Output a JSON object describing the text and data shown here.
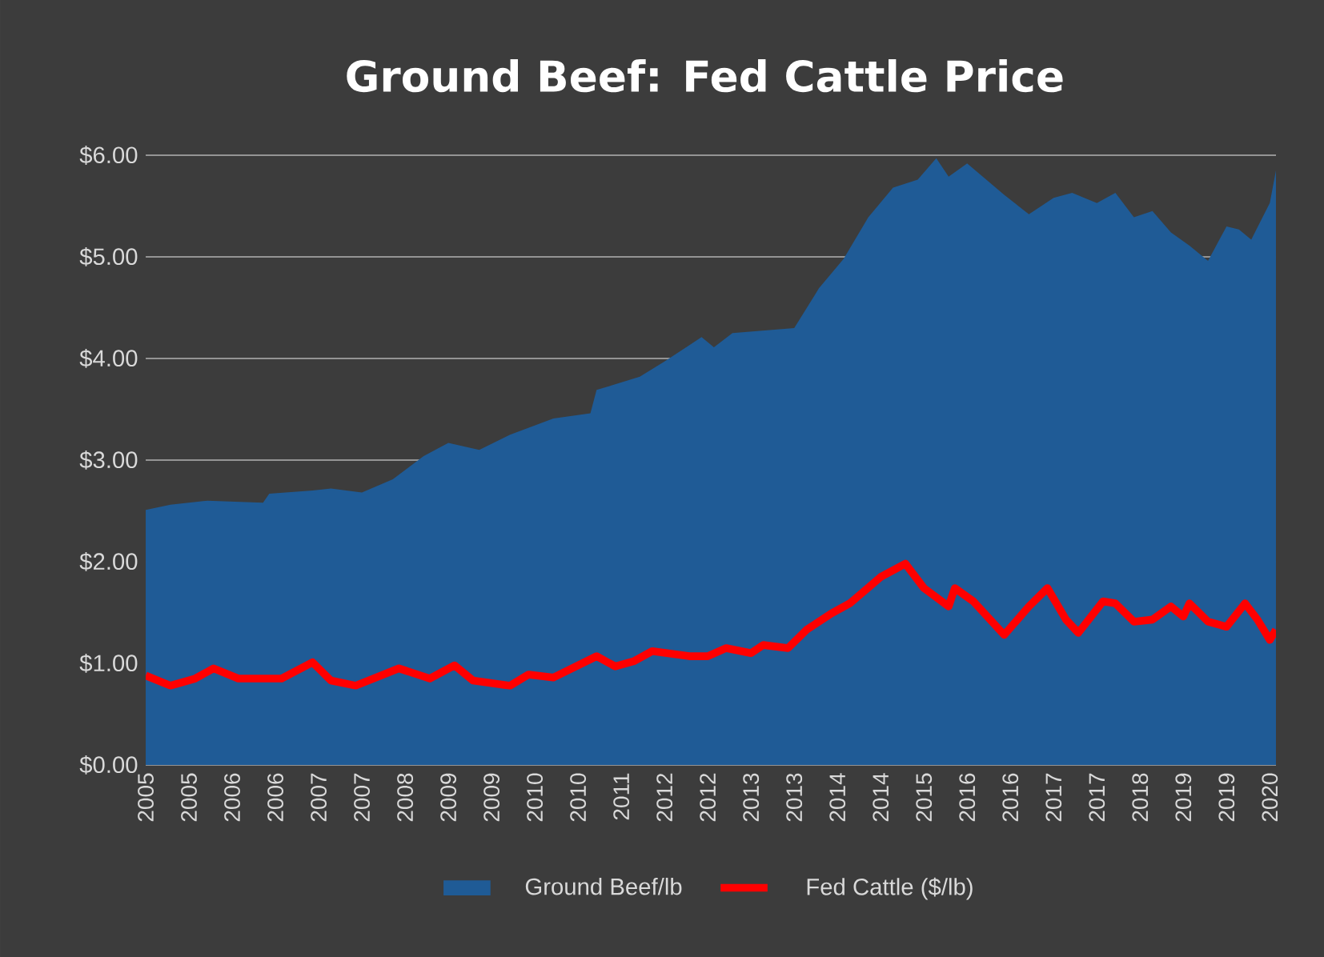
{
  "chart_data": {
    "type": "area",
    "title": "Ground Beef: Fed Cattle Price",
    "xlim": [
      "2005-01",
      "2020-04"
    ],
    "xticks": [
      {
        "value": "2005-01",
        "label": "2005"
      },
      {
        "value": "2005-08",
        "label": "2005"
      },
      {
        "value": "2006-03",
        "label": "2006"
      },
      {
        "value": "2006-10",
        "label": "2006"
      },
      {
        "value": "2007-05",
        "label": "2007"
      },
      {
        "value": "2007-12",
        "label": "2007"
      },
      {
        "value": "2008-07",
        "label": "2008"
      },
      {
        "value": "2009-02",
        "label": "2009"
      },
      {
        "value": "2009-09",
        "label": "2009"
      },
      {
        "value": "2010-04",
        "label": "2010"
      },
      {
        "value": "2010-11",
        "label": "2010"
      },
      {
        "value": "2011-06",
        "label": "2011"
      },
      {
        "value": "2012-01",
        "label": "2012"
      },
      {
        "value": "2012-08",
        "label": "2012"
      },
      {
        "value": "2013-03",
        "label": "2013"
      },
      {
        "value": "2013-10",
        "label": "2013"
      },
      {
        "value": "2014-05",
        "label": "2014"
      },
      {
        "value": "2014-12",
        "label": "2014"
      },
      {
        "value": "2015-07",
        "label": "2015"
      },
      {
        "value": "2016-02",
        "label": "2016"
      },
      {
        "value": "2016-09",
        "label": "2016"
      },
      {
        "value": "2017-04",
        "label": "2017"
      },
      {
        "value": "2017-11",
        "label": "2017"
      },
      {
        "value": "2018-06",
        "label": "2018"
      },
      {
        "value": "2019-01",
        "label": "2019"
      },
      {
        "value": "2019-08",
        "label": "2019"
      },
      {
        "value": "2020-03",
        "label": "2020"
      }
    ],
    "ylim": [
      0,
      6
    ],
    "yticks": [
      {
        "value": 0,
        "label": "$0.00"
      },
      {
        "value": 1,
        "label": "$1.00"
      },
      {
        "value": 2,
        "label": "$2.00"
      },
      {
        "value": 3,
        "label": "$3.00"
      },
      {
        "value": 4,
        "label": "$4.00"
      },
      {
        "value": 5,
        "label": "$5.00"
      },
      {
        "value": 6,
        "label": "$6.00"
      }
    ],
    "grid": "y",
    "legend": "bottom",
    "series": [
      {
        "name": "Ground Beef/lb",
        "color": "#1f5b96",
        "x": [
          "2005-01",
          "2005-05",
          "2005-11",
          "2006-08",
          "2006-09",
          "2007-04",
          "2007-07",
          "2007-12",
          "2008-05",
          "2008-10",
          "2009-02",
          "2009-07",
          "2009-12",
          "2010-07",
          "2011-01",
          "2011-02",
          "2011-09",
          "2012-01",
          "2012-05",
          "2012-07",
          "2012-09",
          "2012-12",
          "2013-04",
          "2013-10",
          "2014-02",
          "2014-06",
          "2014-10",
          "2015-02",
          "2015-06",
          "2015-09",
          "2015-11",
          "2016-02",
          "2016-08",
          "2016-12",
          "2017-04",
          "2017-07",
          "2017-11",
          "2018-02",
          "2018-05",
          "2018-08",
          "2018-11",
          "2019-02",
          "2019-05",
          "2019-08",
          "2019-10",
          "2019-12",
          "2020-03",
          "2020-04"
        ],
        "values": [
          2.51,
          2.56,
          2.6,
          2.58,
          2.67,
          2.7,
          2.72,
          2.68,
          2.81,
          3.04,
          3.17,
          3.1,
          3.25,
          3.41,
          3.46,
          3.69,
          3.82,
          3.97,
          4.13,
          4.21,
          4.11,
          4.25,
          4.27,
          4.3,
          4.69,
          4.98,
          5.39,
          5.68,
          5.76,
          5.97,
          5.79,
          5.92,
          5.61,
          5.42,
          5.58,
          5.63,
          5.53,
          5.63,
          5.39,
          5.45,
          5.24,
          5.11,
          4.96,
          5.3,
          5.27,
          5.17,
          5.53,
          5.85
        ]
      },
      {
        "name": "Fed Cattle ($/lb)",
        "type": "line",
        "color": "#ff0000",
        "x": [
          "2005-01",
          "2005-05",
          "2005-09",
          "2005-12",
          "2006-04",
          "2006-11",
          "2007-04",
          "2007-07",
          "2007-11",
          "2008-06",
          "2008-11",
          "2009-03",
          "2009-06",
          "2009-12",
          "2010-03",
          "2010-07",
          "2011-02",
          "2011-05",
          "2011-08",
          "2011-11",
          "2012-05",
          "2012-08",
          "2012-11",
          "2013-03",
          "2013-05",
          "2013-09",
          "2013-12",
          "2014-04",
          "2014-07",
          "2014-12",
          "2015-04",
          "2015-07",
          "2015-11",
          "2015-12",
          "2016-03",
          "2016-08",
          "2016-12",
          "2017-03",
          "2017-06",
          "2017-08",
          "2017-12",
          "2018-02",
          "2018-05",
          "2018-08",
          "2018-11",
          "2019-01",
          "2019-02",
          "2019-05",
          "2019-08",
          "2019-11",
          "2020-01",
          "2020-03",
          "2020-04"
        ],
        "values": [
          0.88,
          0.78,
          0.85,
          0.95,
          0.85,
          0.85,
          1.01,
          0.83,
          0.78,
          0.95,
          0.85,
          0.98,
          0.83,
          0.78,
          0.89,
          0.86,
          1.07,
          0.97,
          1.02,
          1.12,
          1.07,
          1.07,
          1.15,
          1.1,
          1.18,
          1.15,
          1.33,
          1.49,
          1.59,
          1.85,
          1.98,
          1.74,
          1.56,
          1.74,
          1.61,
          1.28,
          1.56,
          1.74,
          1.43,
          1.3,
          1.61,
          1.59,
          1.41,
          1.43,
          1.56,
          1.46,
          1.59,
          1.41,
          1.36,
          1.59,
          1.43,
          1.23,
          1.33
        ]
      }
    ]
  }
}
